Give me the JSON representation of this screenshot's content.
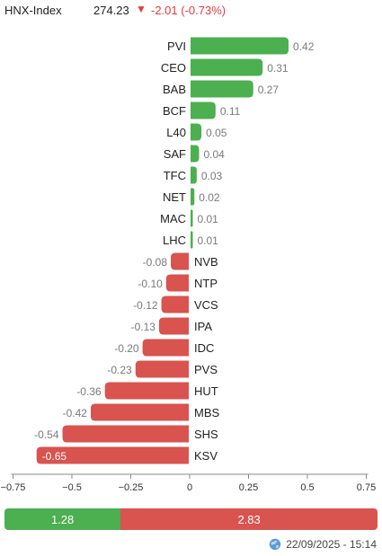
{
  "header": {
    "index_name": "HNX-Index",
    "price": "274.23",
    "arrow": "▼",
    "change": "-2.01 (-0.73%)"
  },
  "colors": {
    "positive": "#4caf50",
    "negative": "#d9534f"
  },
  "chart_data": {
    "type": "bar",
    "orientation": "horizontal",
    "categories": [
      "PVI",
      "CEO",
      "BAB",
      "BCF",
      "L40",
      "SAF",
      "TFC",
      "NET",
      "MAC",
      "LHC",
      "NVB",
      "NTP",
      "VCS",
      "IPA",
      "IDC",
      "PVS",
      "HUT",
      "MBS",
      "SHS",
      "KSV"
    ],
    "values": [
      0.42,
      0.31,
      0.27,
      0.11,
      0.05,
      0.04,
      0.03,
      0.02,
      0.01,
      0.01,
      -0.08,
      -0.1,
      -0.12,
      -0.13,
      -0.2,
      -0.23,
      -0.36,
      -0.42,
      -0.54,
      -0.65
    ],
    "value_labels": [
      "0.42",
      "0.31",
      "0.27",
      "0.11",
      "0.05",
      "0.04",
      "0.03",
      "0.02",
      "0.01",
      "0.01",
      "-0.08",
      "-0.10",
      "-0.12",
      "-0.13",
      "-0.20",
      "-0.23",
      "-0.36",
      "-0.42",
      "-0.54",
      "-0.65"
    ],
    "xlim": [
      -0.75,
      0.75
    ],
    "xticks": [
      -0.75,
      -0.5,
      -0.25,
      0,
      0.25,
      0.5,
      0.75
    ],
    "xtick_labels": [
      "−0.75",
      "−0.5",
      "−0.25",
      "0",
      "0.25",
      "0.5",
      "0.75"
    ]
  },
  "summary": {
    "positive_total": 1.28,
    "negative_total": 2.83,
    "positive_label": "1.28",
    "negative_label": "2.83"
  },
  "footer": {
    "icon": "globe-icon",
    "timestamp": "22/09/2025 - 15:14"
  }
}
